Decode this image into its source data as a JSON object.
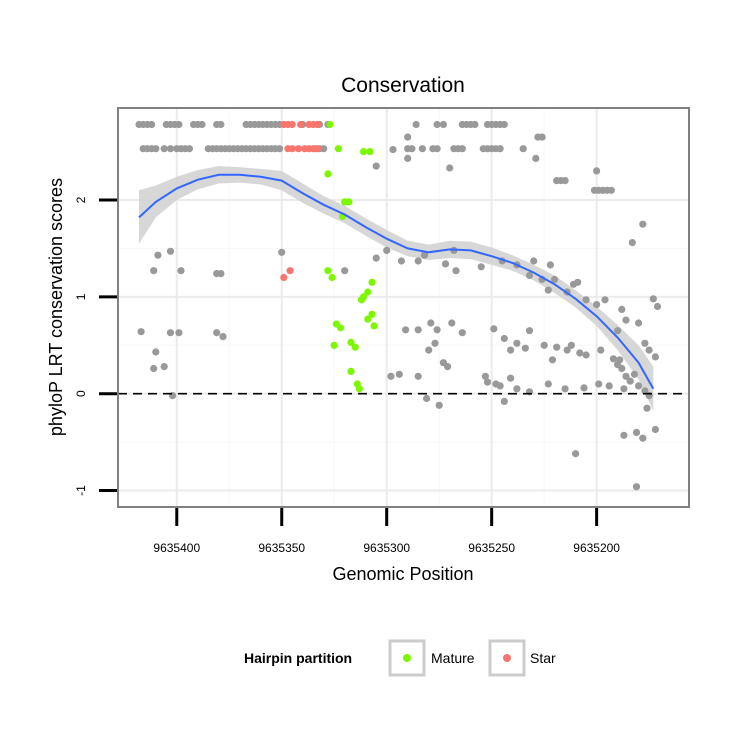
{
  "colors": {
    "background": "#ffffff",
    "panel_border": "#808080",
    "grid_major": "#ebebeb",
    "grid_minor": "#f7f7f7",
    "point_other": "#999999",
    "point_mature": "#7cf700",
    "point_star": "#f8766d",
    "smooth_line": "#3366ff",
    "ribbon": "#d3d3d3",
    "zero_line": "#000000",
    "text": "#000000",
    "legend_key_border": "#cccccc"
  },
  "chart_data": {
    "type": "scatter",
    "title": "Conservation",
    "xlabel": "Genomic Position",
    "ylabel": "phyloP LRT conservation scores",
    "x_reversed": true,
    "xlim": [
      9635428,
      9635156
    ],
    "ylim": [
      -1.17,
      2.95
    ],
    "x_ticks": [
      9635400,
      9635350,
      9635300,
      9635250,
      9635200
    ],
    "x_tick_labels": [
      "9635400",
      "9635350",
      "9635300",
      "9635250",
      "9635200"
    ],
    "y_ticks": [
      -1,
      0,
      1,
      2
    ],
    "y_tick_labels": [
      "-1",
      "0",
      "1",
      "2"
    ],
    "hline": 0,
    "legend": {
      "title": "Hairpin partition",
      "position": "bottom",
      "entries": [
        {
          "label": "Mature",
          "series": "Mature"
        },
        {
          "label": "Star",
          "series": "Star"
        }
      ]
    },
    "series": [
      {
        "name": "Other",
        "color_key": "point_other",
        "in_legend": false,
        "points": [
          [
            9635418,
            2.78
          ],
          [
            9635416,
            2.78
          ],
          [
            9635414,
            2.78
          ],
          [
            9635412,
            2.78
          ],
          [
            9635405,
            2.78
          ],
          [
            9635403,
            2.78
          ],
          [
            9635401,
            2.78
          ],
          [
            9635399,
            2.78
          ],
          [
            9635392,
            2.78
          ],
          [
            9635390,
            2.78
          ],
          [
            9635388,
            2.78
          ],
          [
            9635381,
            2.78
          ],
          [
            9635379,
            2.78
          ],
          [
            9635367,
            2.78
          ],
          [
            9635365,
            2.78
          ],
          [
            9635363,
            2.78
          ],
          [
            9635361,
            2.78
          ],
          [
            9635359,
            2.78
          ],
          [
            9635357,
            2.78
          ],
          [
            9635355,
            2.78
          ],
          [
            9635353,
            2.78
          ],
          [
            9635351,
            2.78
          ],
          [
            9635340,
            2.78
          ],
          [
            9635332,
            2.78
          ],
          [
            9635328,
            2.78
          ],
          [
            9635286,
            2.78
          ],
          [
            9635276,
            2.78
          ],
          [
            9635273,
            2.78
          ],
          [
            9635264,
            2.78
          ],
          [
            9635262,
            2.78
          ],
          [
            9635260,
            2.78
          ],
          [
            9635258,
            2.78
          ],
          [
            9635252,
            2.78
          ],
          [
            9635250,
            2.78
          ],
          [
            9635248,
            2.78
          ],
          [
            9635246,
            2.78
          ],
          [
            9635244,
            2.78
          ],
          [
            9635416,
            2.53
          ],
          [
            9635414,
            2.53
          ],
          [
            9635412,
            2.53
          ],
          [
            9635410,
            2.53
          ],
          [
            9635406,
            2.53
          ],
          [
            9635403,
            2.53
          ],
          [
            9635400,
            2.53
          ],
          [
            9635398,
            2.53
          ],
          [
            9635396,
            2.53
          ],
          [
            9635394,
            2.53
          ],
          [
            9635385,
            2.53
          ],
          [
            9635383,
            2.53
          ],
          [
            9635381,
            2.53
          ],
          [
            9635379,
            2.53
          ],
          [
            9635377,
            2.53
          ],
          [
            9635375,
            2.53
          ],
          [
            9635373,
            2.53
          ],
          [
            9635371,
            2.53
          ],
          [
            9635369,
            2.53
          ],
          [
            9635367,
            2.53
          ],
          [
            9635365,
            2.53
          ],
          [
            9635363,
            2.53
          ],
          [
            9635361,
            2.53
          ],
          [
            9635359,
            2.53
          ],
          [
            9635357,
            2.53
          ],
          [
            9635355,
            2.53
          ],
          [
            9635353,
            2.53
          ],
          [
            9635351,
            2.53
          ],
          [
            9635334,
            2.53
          ],
          [
            9635332,
            2.53
          ],
          [
            9635330,
            2.53
          ],
          [
            9635290,
            2.53
          ],
          [
            9635288,
            2.53
          ],
          [
            9635283,
            2.53
          ],
          [
            9635278,
            2.53
          ],
          [
            9635276,
            2.53
          ],
          [
            9635268,
            2.53
          ],
          [
            9635266,
            2.53
          ],
          [
            9635264,
            2.53
          ],
          [
            9635254,
            2.53
          ],
          [
            9635252,
            2.53
          ],
          [
            9635250,
            2.53
          ],
          [
            9635248,
            2.53
          ],
          [
            9635246,
            2.53
          ],
          [
            9635235,
            2.53
          ],
          [
            9635290,
            2.65
          ],
          [
            9635297,
            2.52
          ],
          [
            9635228,
            2.65
          ],
          [
            9635226,
            2.65
          ],
          [
            9635290,
            2.43
          ],
          [
            9635305,
            2.35
          ],
          [
            9635270,
            2.33
          ],
          [
            9635229,
            2.43
          ],
          [
            9635200,
            2.3
          ],
          [
            9635219,
            2.2
          ],
          [
            9635217,
            2.2
          ],
          [
            9635215,
            2.2
          ],
          [
            9635201,
            2.1
          ],
          [
            9635199,
            2.1
          ],
          [
            9635197,
            2.1
          ],
          [
            9635195,
            2.1
          ],
          [
            9635193,
            2.1
          ],
          [
            9635178,
            1.75
          ],
          [
            9635183,
            1.56
          ],
          [
            9635300,
            1.48
          ],
          [
            9635268,
            1.48
          ],
          [
            9635282,
            1.43
          ],
          [
            9635293,
            1.37
          ],
          [
            9635285,
            1.37
          ],
          [
            9635305,
            1.4
          ],
          [
            9635230,
            1.37
          ],
          [
            9635245,
            1.37
          ],
          [
            9635232,
            1.22
          ],
          [
            9635255,
            1.31
          ],
          [
            9635267,
            1.27
          ],
          [
            9635272,
            1.34
          ],
          [
            9635238,
            1.33
          ],
          [
            9635222,
            1.33
          ],
          [
            9635409,
            1.43
          ],
          [
            9635403,
            1.47
          ],
          [
            9635411,
            1.27
          ],
          [
            9635398,
            1.27
          ],
          [
            9635381,
            1.24
          ],
          [
            9635379,
            1.24
          ],
          [
            9635350,
            1.46
          ],
          [
            9635320,
            1.27
          ],
          [
            9635226,
            1.18
          ],
          [
            9635220,
            1.18
          ],
          [
            9635223,
            1.07
          ],
          [
            9635214,
            1.05
          ],
          [
            9635211,
            1.13
          ],
          [
            9635209,
            1.15
          ],
          [
            9635205,
            0.97
          ],
          [
            9635200,
            0.92
          ],
          [
            9635196,
            0.97
          ],
          [
            9635188,
            0.87
          ],
          [
            9635186,
            0.76
          ],
          [
            9635180,
            0.73
          ],
          [
            9635190,
            0.65
          ],
          [
            9635173,
            0.98
          ],
          [
            9635171,
            0.9
          ],
          [
            9635175,
            0.45
          ],
          [
            9635177,
            0.52
          ],
          [
            9635172,
            0.38
          ],
          [
            9635417,
            0.64
          ],
          [
            9635403,
            0.63
          ],
          [
            9635399,
            0.63
          ],
          [
            9635381,
            0.63
          ],
          [
            9635378,
            0.59
          ],
          [
            9635410,
            0.43
          ],
          [
            9635411,
            0.26
          ],
          [
            9635406,
            0.28
          ],
          [
            9635402,
            -0.02
          ],
          [
            9635291,
            0.66
          ],
          [
            9635285,
            0.66
          ],
          [
            9635279,
            0.73
          ],
          [
            9635276,
            0.66
          ],
          [
            9635269,
            0.73
          ],
          [
            9635264,
            0.63
          ],
          [
            9635277,
            0.52
          ],
          [
            9635280,
            0.45
          ],
          [
            9635273,
            0.32
          ],
          [
            9635271,
            0.28
          ],
          [
            9635281,
            -0.05
          ],
          [
            9635275,
            -0.12
          ],
          [
            9635249,
            0.67
          ],
          [
            9635244,
            0.57
          ],
          [
            9635241,
            0.45
          ],
          [
            9635238,
            0.52
          ],
          [
            9635234,
            0.47
          ],
          [
            9635232,
            0.65
          ],
          [
            9635225,
            0.5
          ],
          [
            9635221,
            0.35
          ],
          [
            9635219,
            0.48
          ],
          [
            9635214,
            0.45
          ],
          [
            9635212,
            0.5
          ],
          [
            9635208,
            0.42
          ],
          [
            9635205,
            0.4
          ],
          [
            9635198,
            0.45
          ],
          [
            9635192,
            0.36
          ],
          [
            9635189,
            0.35
          ],
          [
            9635298,
            0.18
          ],
          [
            9635294,
            0.2
          ],
          [
            9635285,
            0.18
          ],
          [
            9635253,
            0.18
          ],
          [
            9635252,
            0.12
          ],
          [
            9635248,
            0.1
          ],
          [
            9635244,
            -0.08
          ],
          [
            9635246,
            0.08
          ],
          [
            9635241,
            0.16
          ],
          [
            9635238,
            0.05
          ],
          [
            9635232,
            0.02
          ],
          [
            9635223,
            0.1
          ],
          [
            9635215,
            0.05
          ],
          [
            9635206,
            0.06
          ],
          [
            9635199,
            0.1
          ],
          [
            9635194,
            0.08
          ],
          [
            9635190,
            0.3
          ],
          [
            9635188,
            0.26
          ],
          [
            9635186,
            0.18
          ],
          [
            9635184,
            0.13
          ],
          [
            9635187,
            0.05
          ],
          [
            9635182,
            0.2
          ],
          [
            9635180,
            0.08
          ],
          [
            9635177,
            0.03
          ],
          [
            9635175,
            -0.02
          ],
          [
            9635176,
            -0.15
          ],
          [
            9635210,
            -0.62
          ],
          [
            9635187,
            -0.43
          ],
          [
            9635181,
            -0.4
          ],
          [
            9635178,
            -0.46
          ],
          [
            9635172,
            -0.37
          ],
          [
            9635181,
            -0.96
          ]
        ]
      },
      {
        "name": "Mature",
        "color_key": "point_mature",
        "in_legend": true,
        "points": [
          [
            9635327,
            2.78
          ],
          [
            9635323,
            2.53
          ],
          [
            9635311,
            2.5
          ],
          [
            9635308,
            2.5
          ],
          [
            9635328,
            2.27
          ],
          [
            9635320,
            1.98
          ],
          [
            9635318,
            1.98
          ],
          [
            9635321,
            1.83
          ],
          [
            9635328,
            1.27
          ],
          [
            9635326,
            1.2
          ],
          [
            9635307,
            1.15
          ],
          [
            9635309,
            1.05
          ],
          [
            9635312,
            0.97
          ],
          [
            9635311,
            1.0
          ],
          [
            9635307,
            0.82
          ],
          [
            9635309,
            0.77
          ],
          [
            9635306,
            0.7
          ],
          [
            9635324,
            0.72
          ],
          [
            9635322,
            0.68
          ],
          [
            9635317,
            0.53
          ],
          [
            9635315,
            0.48
          ],
          [
            9635325,
            0.5
          ],
          [
            9635317,
            0.23
          ],
          [
            9635314,
            0.1
          ],
          [
            9635313,
            0.05
          ]
        ]
      },
      {
        "name": "Star",
        "color_key": "point_star",
        "in_legend": true,
        "points": [
          [
            9635349,
            2.78
          ],
          [
            9635347,
            2.78
          ],
          [
            9635345,
            2.78
          ],
          [
            9635341,
            2.78
          ],
          [
            9635337,
            2.78
          ],
          [
            9635335,
            2.78
          ],
          [
            9635333,
            2.78
          ],
          [
            9635347,
            2.53
          ],
          [
            9635345,
            2.53
          ],
          [
            9635342,
            2.53
          ],
          [
            9635339,
            2.53
          ],
          [
            9635337,
            2.53
          ],
          [
            9635335,
            2.53
          ],
          [
            9635333,
            2.53
          ],
          [
            9635349,
            1.2
          ],
          [
            9635346,
            1.27
          ]
        ]
      }
    ],
    "smooth": {
      "method": "loess",
      "x": [
        9635418,
        9635410,
        9635400,
        9635390,
        9635380,
        9635370,
        9635360,
        9635350,
        9635340,
        9635330,
        9635320,
        9635310,
        9635300,
        9635290,
        9635280,
        9635270,
        9635260,
        9635250,
        9635240,
        9635230,
        9635220,
        9635210,
        9635200,
        9635190,
        9635180,
        9635173
      ],
      "y": [
        1.82,
        1.98,
        2.12,
        2.21,
        2.26,
        2.26,
        2.24,
        2.2,
        2.07,
        1.95,
        1.85,
        1.72,
        1.6,
        1.5,
        1.46,
        1.49,
        1.48,
        1.42,
        1.35,
        1.25,
        1.13,
        0.98,
        0.8,
        0.58,
        0.32,
        0.05
      ],
      "ymin": [
        1.55,
        1.82,
        2.0,
        2.11,
        2.17,
        2.18,
        2.16,
        2.1,
        1.97,
        1.86,
        1.76,
        1.63,
        1.51,
        1.42,
        1.38,
        1.4,
        1.39,
        1.33,
        1.27,
        1.17,
        1.04,
        0.89,
        0.7,
        0.45,
        0.15,
        -0.18
      ],
      "ymax": [
        2.1,
        2.15,
        2.24,
        2.31,
        2.35,
        2.34,
        2.32,
        2.3,
        2.17,
        2.04,
        1.94,
        1.81,
        1.69,
        1.58,
        1.54,
        1.58,
        1.57,
        1.51,
        1.43,
        1.33,
        1.22,
        1.07,
        0.9,
        0.71,
        0.5,
        0.28
      ]
    }
  }
}
